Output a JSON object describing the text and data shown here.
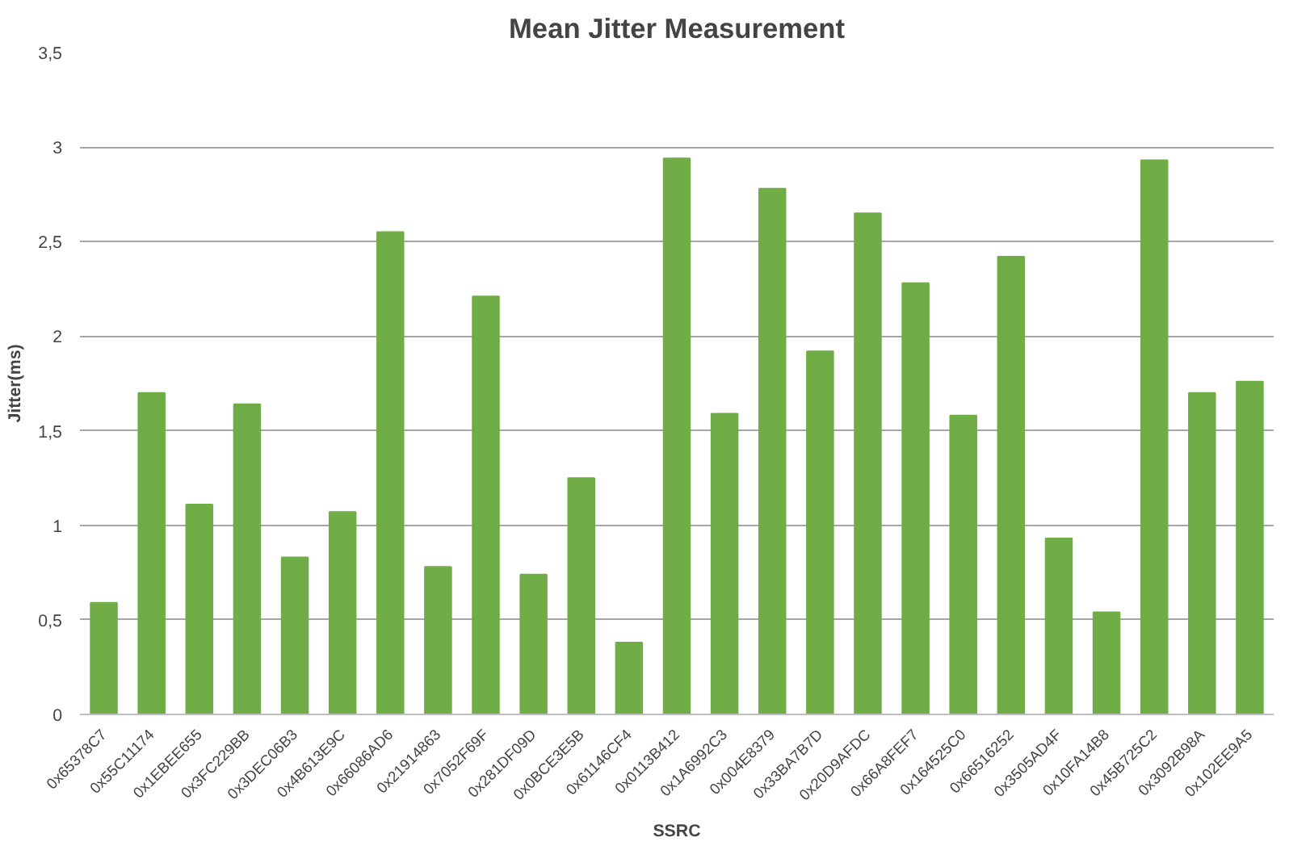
{
  "chart_data": {
    "type": "bar",
    "title": "Mean Jitter Measurement",
    "xlabel": "SSRC",
    "ylabel": "Jitter(ms)",
    "categories": [
      "0x65378C7",
      "0x55C11174",
      "0x1EBEE655",
      "0x3FC229BB",
      "0x3DEC06B3",
      "0x4B613E9C",
      "0x66086AD6",
      "0x21914863",
      "0x7052F69F",
      "0x281DF09D",
      "0x0BCE3E5B",
      "0x61146CF4",
      "0x0113B412",
      "0x1A6992C3",
      "0x004E8379",
      "0x33BA7B7D",
      "0x20D9AFDC",
      "0x66A8FEF7",
      "0x164525C0",
      "0x66516252",
      "0x3505AD4F",
      "0x10FA14B8",
      "0x45B725C2",
      "0x3092B98A",
      "0x102EE9A5"
    ],
    "values": [
      0.59,
      1.7,
      1.11,
      1.64,
      0.83,
      1.07,
      2.55,
      0.78,
      2.21,
      0.74,
      1.25,
      0.38,
      2.94,
      1.59,
      2.78,
      1.92,
      2.65,
      2.28,
      1.58,
      2.42,
      0.93,
      0.54,
      2.93,
      1.7,
      1.76
    ],
    "color": "#70ad47",
    "ylim": [
      0,
      3.5
    ],
    "yticks": [
      0,
      {
        "value": 0.5,
        "label": "0,5"
      },
      1,
      {
        "value": 1.5,
        "label": "1,5"
      },
      2,
      {
        "value": 2.5,
        "label": "2,5"
      },
      3,
      {
        "value": 3.5,
        "label": "3,5"
      }
    ],
    "grid": "y"
  }
}
